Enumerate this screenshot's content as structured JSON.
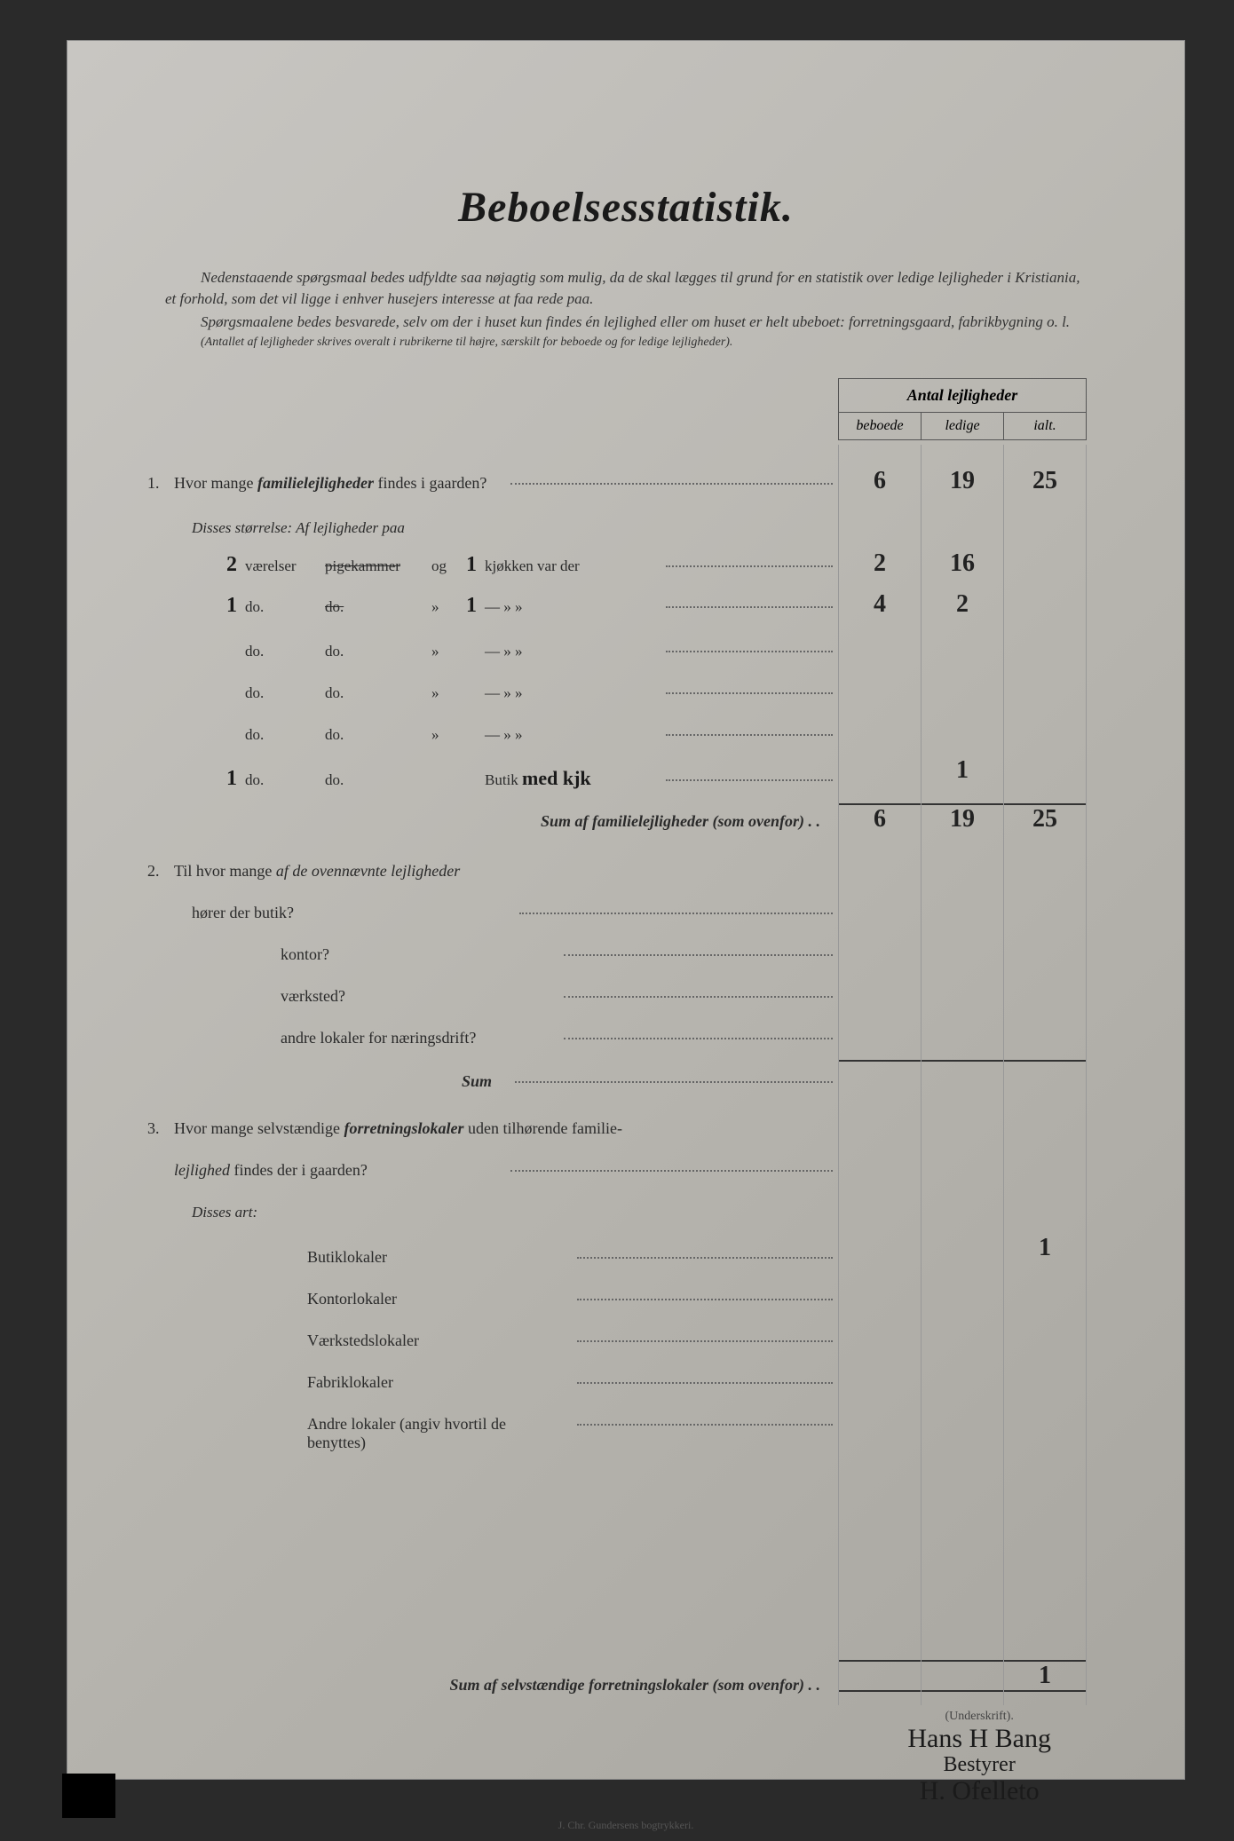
{
  "title": "Beboelsesstatistik.",
  "intro": {
    "p1": "Nedenstaaende spørgsmaal bedes udfyldte saa nøjagtig som mulig, da de skal lægges til grund for en statistik over ledige lejligheder i Kristiania, et forhold, som det vil ligge i enhver husejers interesse at faa rede paa.",
    "p2": "Spørgsmaalene bedes besvarede, selv om der i huset kun findes én lejlighed eller om huset er helt ubeboet: forretningsgaard, fabrikbygning o. l.",
    "p3": "(Antallet af lejligheder skrives overalt i rubrikerne til højre, særskilt for beboede og for ledige lejligheder).",
    "p3_emphasis": "højre"
  },
  "table_header": {
    "title": "Antal lejligheder",
    "cols": [
      "beboede",
      "ledige",
      "ialt."
    ]
  },
  "q1": {
    "num": "1.",
    "text_a": "Hvor mange ",
    "text_b": "familielejligheder",
    "text_c": " findes i gaarden?",
    "vals": [
      "6",
      "19",
      "25"
    ],
    "sub": "Disses størrelse:  Af lejligheder paa",
    "rows": [
      {
        "vaer": "2",
        "label1": "værelser",
        "pig": "pigekammer",
        "pig_strike": true,
        "og": "og",
        "kjok_n": "1",
        "label2": "kjøkken var der",
        "vals": [
          "2",
          "16",
          ""
        ]
      },
      {
        "vaer": "1",
        "label1": "do.",
        "pig": "do.",
        "pig_strike": true,
        "og": "»",
        "kjok_n": "1",
        "label2": "—        »    »",
        "vals": [
          "4",
          "2",
          ""
        ]
      },
      {
        "vaer": "",
        "label1": "do.",
        "pig": "do.",
        "pig_strike": false,
        "og": "»",
        "kjok_n": "",
        "label2": "—        »    »",
        "vals": [
          "",
          "",
          ""
        ]
      },
      {
        "vaer": "",
        "label1": "do.",
        "pig": "do.",
        "pig_strike": false,
        "og": "»",
        "kjok_n": "",
        "label2": "—        »    »",
        "vals": [
          "",
          "",
          ""
        ]
      },
      {
        "vaer": "",
        "label1": "do.",
        "pig": "do.",
        "pig_strike": false,
        "og": "»",
        "kjok_n": "",
        "label2": "—        »    »",
        "vals": [
          "",
          "",
          ""
        ]
      },
      {
        "vaer": "1",
        "label1": "do.",
        "pig": "do.",
        "pig_strike": false,
        "og": "",
        "kjok_n": "",
        "label2": "Butik",
        "handwritten_extra": "med kjk",
        "vals": [
          "",
          "1",
          ""
        ]
      }
    ],
    "sum_label": "Sum af familielejligheder",
    "sum_note": "(som ovenfor)",
    "sum_vals": [
      "6",
      "19",
      "25"
    ]
  },
  "q2": {
    "num": "2.",
    "text_a": "Til hvor mange ",
    "text_b": "af de ovennævnte lejligheder",
    "rows": [
      {
        "label": "hører der butik?",
        "vals": [
          "",
          "",
          ""
        ]
      },
      {
        "label": "kontor?",
        "vals": [
          "",
          "",
          ""
        ]
      },
      {
        "label": "værksted?",
        "vals": [
          "",
          "",
          ""
        ]
      },
      {
        "label": "andre lokaler for næringsdrift?",
        "vals": [
          "",
          "",
          ""
        ]
      }
    ],
    "sum_label": "Sum",
    "sum_vals": [
      "",
      "",
      ""
    ]
  },
  "q3": {
    "num": "3.",
    "text_a": "Hvor mange selvstændige ",
    "text_b": "forretningslokaler",
    "text_c": " uden tilhørende familie-",
    "text_d": "lejlighed",
    "text_e": " findes der i gaarden?",
    "vals": [
      "",
      "",
      ""
    ],
    "sub": "Disses art:",
    "rows": [
      {
        "label": "Butiklokaler",
        "vals": [
          "",
          "",
          "1"
        ]
      },
      {
        "label": "Kontorlokaler",
        "vals": [
          "",
          "",
          ""
        ]
      },
      {
        "label": "Værkstedslokaler",
        "vals": [
          "",
          "",
          ""
        ]
      },
      {
        "label": "Fabriklokaler",
        "vals": [
          "",
          "",
          ""
        ]
      },
      {
        "label": "Andre lokaler (angiv hvortil de benyttes)",
        "vals": [
          "",
          "",
          ""
        ]
      }
    ],
    "sum_label": "Sum af selvstændige forretningslokaler",
    "sum_note": "(som ovenfor)",
    "sum_vals": [
      "",
      "",
      "1"
    ]
  },
  "signature": {
    "label": "(Underskrift).",
    "line1": "Hans H Bang",
    "line2": "Bestyrer",
    "line3": "H. Ofelleto"
  },
  "printer": "J. Chr. Gundersens bogtrykkeri.",
  "colors": {
    "paper_bg": "#b8b6b0",
    "text": "#2a2a2a",
    "border": "#555"
  }
}
